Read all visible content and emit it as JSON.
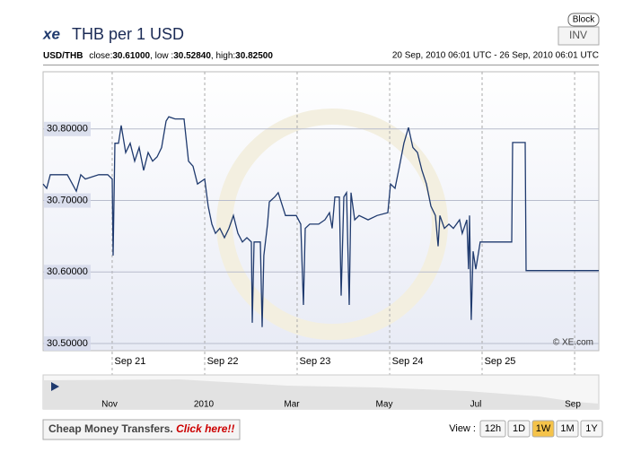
{
  "header": {
    "logo": "xe",
    "title": "THB per 1 USD",
    "block": "Block",
    "inv": "INV"
  },
  "info": {
    "pair": "USD/THB",
    "close_label": "close:",
    "close": "30.61000",
    "low_label": ", low :",
    "low": "30.52840",
    "high_label": ", high:",
    "high": "30.82500",
    "range": "20 Sep, 2010 06:01 UTC - 26 Sep, 2010 06:01 UTC"
  },
  "chart_data": {
    "type": "line",
    "color": "#1f3a6e",
    "copyright": "© XE.com",
    "x": [
      0,
      0.039,
      0.078,
      0.165,
      0.262,
      0.359,
      0.407,
      0.456,
      0.601,
      0.698,
      0.746,
      0.756,
      0.775,
      0.814,
      0.843,
      0.892,
      0.94,
      0.989,
      1.037,
      1.086,
      1.134,
      1.183,
      1.231,
      1.279,
      1.328,
      1.357,
      1.425,
      1.522,
      1.57,
      1.619,
      1.667,
      1.745,
      1.783,
      1.822,
      1.861,
      1.909,
      1.958,
      2.006,
      2.055,
      2.103,
      2.152,
      2.2,
      2.249,
      2.258,
      2.278,
      2.346,
      2.365,
      2.384,
      2.423,
      2.443,
      2.501,
      2.539,
      2.617,
      2.733,
      2.782,
      2.811,
      2.83,
      2.879,
      2.976,
      3.043,
      3.092,
      3.121,
      3.15,
      3.199,
      3.218,
      3.247,
      3.276,
      3.305,
      3.325,
      3.364,
      3.412,
      3.509,
      3.606,
      3.722,
      3.751,
      3.8,
      3.848,
      3.896,
      3.945,
      3.993,
      4.042,
      4.09,
      4.139,
      4.187,
      4.236,
      4.265,
      4.284,
      4.333,
      4.381,
      4.43,
      4.497,
      4.526,
      4.575,
      4.594,
      4.604,
      4.623,
      4.643,
      4.672,
      4.72,
      4.769,
      5.06,
      5.069,
      5.205,
      5.215,
      6
    ],
    "values": [
      30.723,
      30.717,
      30.736,
      30.736,
      30.736,
      30.713,
      30.736,
      30.73,
      30.736,
      30.736,
      30.73,
      30.623,
      30.78,
      30.78,
      30.805,
      30.767,
      30.78,
      30.755,
      30.774,
      30.742,
      30.767,
      30.755,
      30.761,
      30.774,
      30.811,
      30.817,
      30.814,
      30.814,
      30.755,
      30.748,
      30.723,
      30.73,
      30.692,
      30.667,
      30.654,
      30.661,
      30.648,
      30.661,
      30.679,
      30.654,
      30.642,
      30.648,
      30.642,
      30.529,
      30.642,
      30.642,
      30.523,
      30.623,
      30.667,
      30.698,
      30.705,
      30.711,
      30.679,
      30.679,
      30.667,
      30.554,
      30.661,
      30.667,
      30.667,
      30.673,
      30.683,
      30.661,
      30.705,
      30.705,
      30.567,
      30.705,
      30.711,
      30.554,
      30.711,
      30.673,
      30.679,
      30.673,
      30.679,
      30.683,
      30.723,
      30.717,
      30.748,
      30.78,
      30.802,
      30.774,
      30.767,
      30.742,
      30.723,
      30.692,
      30.679,
      30.636,
      30.679,
      30.661,
      30.667,
      30.661,
      30.673,
      30.654,
      30.673,
      30.604,
      30.679,
      30.533,
      30.629,
      30.604,
      30.642,
      30.642,
      30.642,
      30.781,
      30.781,
      30.602,
      30.602
    ],
    "xlim": [
      0,
      6
    ],
    "xticks": [
      {
        "value": 0.746,
        "label": "Sep 21"
      },
      {
        "value": 1.745,
        "label": "Sep 22"
      },
      {
        "value": 2.743,
        "label": "Sep 23"
      },
      {
        "value": 3.742,
        "label": "Sep 24"
      },
      {
        "value": 4.74,
        "label": "Sep 25"
      },
      {
        "value": 5.739,
        "label": null
      }
    ],
    "ylim": [
      30.49,
      30.88
    ],
    "yticks": [
      {
        "value": 30.5,
        "label": "30.50000"
      },
      {
        "value": 30.6,
        "label": "30.60000"
      },
      {
        "value": 30.7,
        "label": "30.70000"
      },
      {
        "value": 30.8,
        "label": "30.80000"
      }
    ],
    "grid": true
  },
  "navigator": {
    "labels": [
      "Nov",
      "2010",
      "Mar",
      "May",
      "Jul",
      "Sep"
    ]
  },
  "footer": {
    "promo": "Cheap Money Transfers.",
    "promo_link": "Click here!!",
    "view_label": "View :",
    "buttons": [
      "12h",
      "1D",
      "1W",
      "1M",
      "1Y"
    ],
    "active": "1W"
  }
}
